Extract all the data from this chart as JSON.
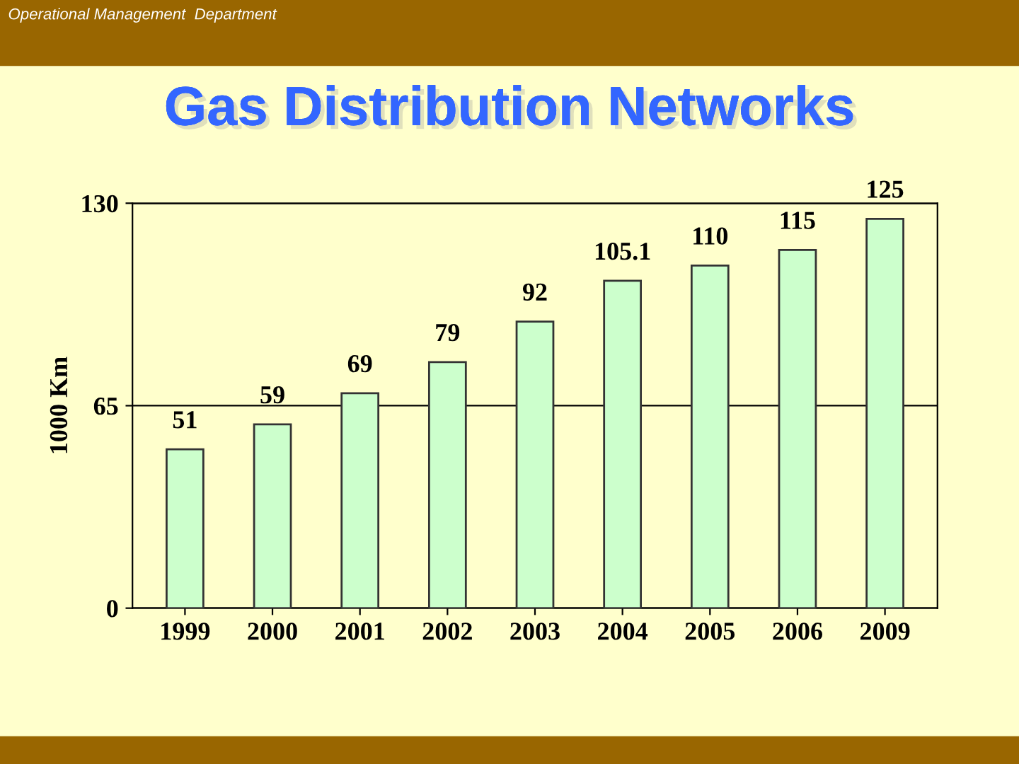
{
  "chart_data": {
    "type": "bar",
    "title": "Gas Distribution Networks",
    "ylabel": "1000 Km",
    "annotations": [
      "Operational Management  Department"
    ],
    "categories": [
      "1999",
      "2000",
      "2001",
      "2002",
      "2003",
      "2004",
      "2005",
      "2006",
      "2009"
    ],
    "values": [
      51,
      59,
      69,
      79,
      92,
      105.1,
      110,
      115,
      125
    ],
    "color": "#ccffcc",
    "ylim": [
      0,
      130
    ],
    "yticks": [
      0,
      65,
      130
    ],
    "grid": "y",
    "data_labels": true,
    "legend": false
  }
}
